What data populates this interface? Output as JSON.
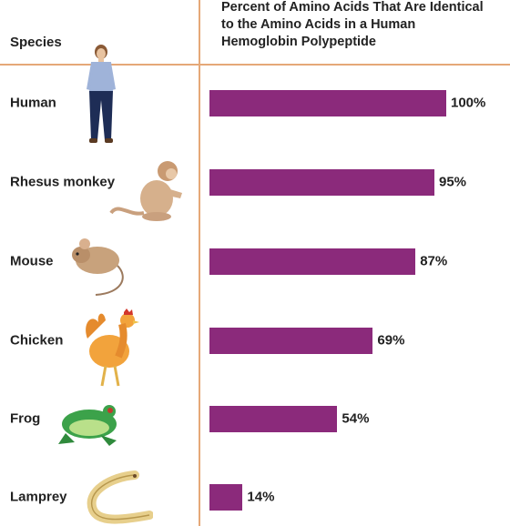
{
  "chart_data": {
    "type": "bar",
    "orientation": "horizontal",
    "column_headers": {
      "species": "Species",
      "percent": "Percent of Amino Acids That Are Identical to the Amino Acids in a Human Hemoglobin Polypeptide"
    },
    "categories": [
      "Human",
      "Rhesus monkey",
      "Mouse",
      "Chicken",
      "Frog",
      "Lamprey"
    ],
    "values": [
      100,
      95,
      87,
      69,
      54,
      14
    ],
    "value_labels": [
      "100%",
      "95%",
      "87%",
      "69%",
      "54%",
      "14%"
    ],
    "xlim": [
      0,
      100
    ],
    "grid": false,
    "bar_color": "#8b2a7b",
    "divider_color": "#e5a878",
    "illustrations": [
      "human-icon",
      "rhesus-monkey-icon",
      "mouse-icon",
      "chicken-icon",
      "frog-icon",
      "lamprey-icon"
    ]
  }
}
